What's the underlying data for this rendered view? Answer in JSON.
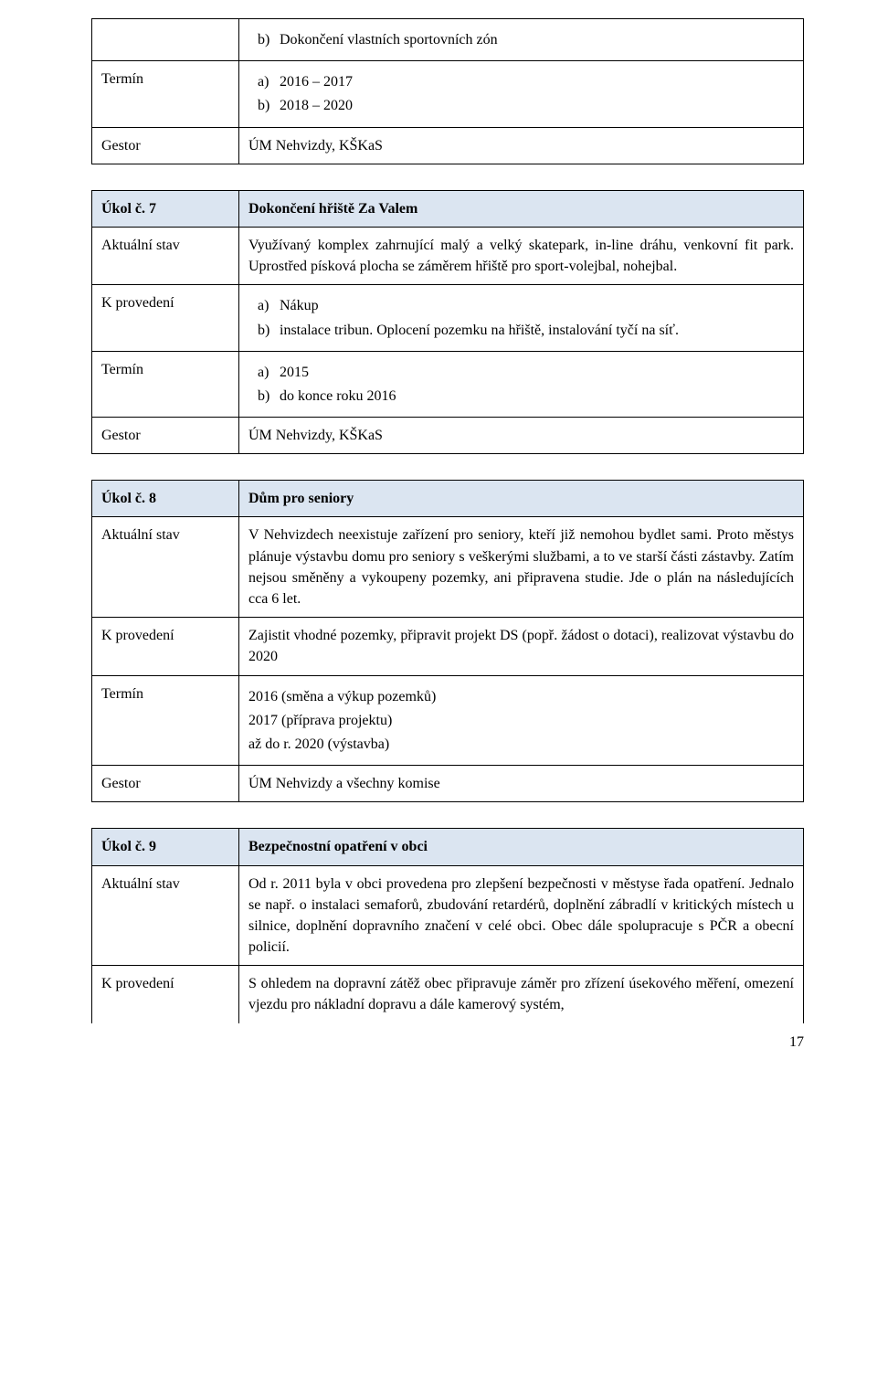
{
  "colors": {
    "header_bg": "#dbe5f1",
    "border": "#000000",
    "text": "#000000",
    "page_bg": "#ffffff"
  },
  "table_top": {
    "row1_letter": "b)",
    "row1_text": "Dokončení vlastních sportovních zón",
    "termin_label": "Termín",
    "a_letter": "a)",
    "a_text": "2016 – 2017",
    "b_letter": "b)",
    "b_text": "2018 – 2020",
    "gestor_label": "Gestor",
    "gestor_value": "ÚM Nehvizdy, KŠKaS"
  },
  "task7": {
    "label": "Úkol č. 7",
    "title": "Dokončení hřiště Za Valem",
    "aktualni_label": "Aktuální stav",
    "aktualni_value": "Využívaný komplex zahrnující malý a velký skatepark, in-line dráhu, venkovní fit park. Uprostřed písková plocha se záměrem hřiště pro sport-volejbal, nohejbal.",
    "kprov_label": "K provedení",
    "kprov_a_letter": "a)",
    "kprov_a_text": "Nákup",
    "kprov_b_letter": "b)",
    "kprov_b_text": "instalace tribun. Oplocení pozemku na hřiště, instalování tyčí na síť.",
    "termin_label": "Termín",
    "termin_a_letter": "a)",
    "termin_a_text": "2015",
    "termin_b_letter": "b)",
    "termin_b_text": "do konce roku 2016",
    "gestor_label": "Gestor",
    "gestor_value": "ÚM Nehvizdy, KŠKaS"
  },
  "task8": {
    "label": "Úkol č. 8",
    "title": "Dům pro seniory",
    "aktualni_label": "Aktuální stav",
    "aktualni_value": "V Nehvizdech neexistuje zařízení pro seniory, kteří již nemohou bydlet sami. Proto městys plánuje výstavbu domu pro seniory s veškerými službami, a to ve starší části zástavby. Zatím nejsou směněny a vykoupeny pozemky, ani připravena studie. Jde o plán na následujících cca 6 let.",
    "kprov_label": "K provedení",
    "kprov_value": "Zajistit vhodné pozemky, připravit projekt DS (popř. žádost o dotaci), realizovat výstavbu do 2020",
    "termin_label": "Termín",
    "termin_line1": "2016 (směna a výkup pozemků)",
    "termin_line2": "2017 (příprava projektu)",
    "termin_line3": "až do r. 2020 (výstavba)",
    "gestor_label": "Gestor",
    "gestor_value": "ÚM Nehvizdy a všechny komise"
  },
  "task9": {
    "label": "Úkol č. 9",
    "title": "Bezpečnostní opatření v obci",
    "aktualni_label": "Aktuální stav",
    "aktualni_value": "Od r. 2011 byla v obci provedena pro zlepšení bezpečnosti v městyse řada opatření. Jednalo se např. o instalaci semaforů, zbudování retardérů, doplnění zábradlí v kritických místech u silnice, doplnění dopravního značení v celé obci. Obec dále spolupracuje s PČR a obecní policií.",
    "kprov_label": "K provedení",
    "kprov_value": "S ohledem na dopravní zátěž obec připravuje záměr pro zřízení úsekového měření, omezení vjezdu pro nákladní dopravu a dále kamerový systém,"
  },
  "page_number": "17"
}
